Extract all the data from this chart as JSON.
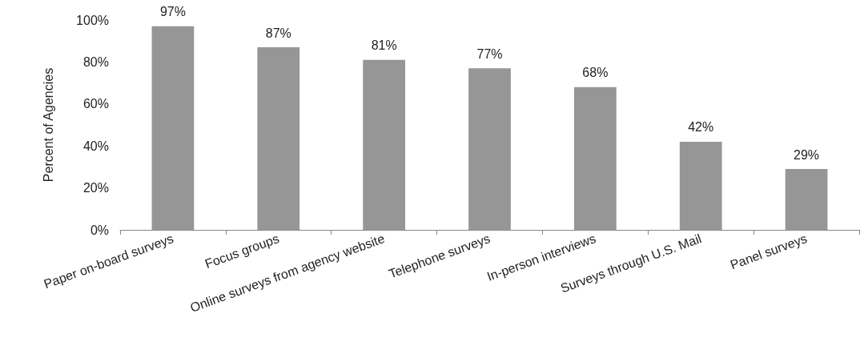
{
  "chart_data": {
    "type": "bar",
    "ylabel": "Percent of Agencies",
    "categories": [
      "Paper on-board surveys",
      "Focus groups",
      "Online surveys from agency website",
      "Telephone surveys",
      "In-person interviews",
      "Surveys through U.S. Mail",
      "Panel surveys"
    ],
    "values": [
      97,
      87,
      81,
      77,
      68,
      42,
      29
    ],
    "value_labels": [
      "97%",
      "87%",
      "81%",
      "77%",
      "68%",
      "42%",
      "29%"
    ],
    "color": "#969696",
    "ylim": [
      0,
      100
    ],
    "yticks": [
      {
        "value": 0,
        "label": "0%"
      },
      {
        "value": 20,
        "label": "20%"
      },
      {
        "value": 40,
        "label": "40%"
      },
      {
        "value": 60,
        "label": "60%"
      },
      {
        "value": 80,
        "label": "80%"
      },
      {
        "value": 100,
        "label": "100%"
      }
    ],
    "grid": false
  }
}
